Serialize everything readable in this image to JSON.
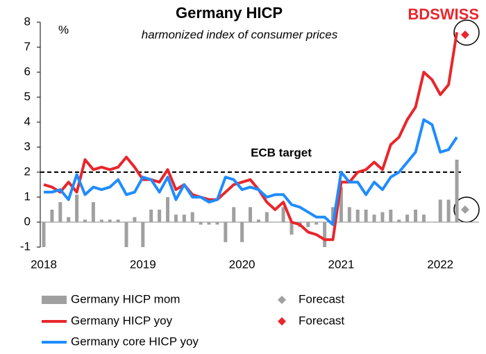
{
  "chart_data": {
    "type": "combo",
    "title": "Germany HICP",
    "subtitle": "harmonized index of consumer prices",
    "y_unit": "%",
    "logo": "BDSWISS",
    "annotation": "ECB target",
    "ecb_target": 2,
    "categories": [
      "2018",
      null,
      null,
      null,
      null,
      null,
      null,
      null,
      null,
      null,
      null,
      null,
      "2019",
      null,
      null,
      null,
      null,
      null,
      null,
      null,
      null,
      null,
      null,
      null,
      "2020",
      null,
      null,
      null,
      null,
      null,
      null,
      null,
      null,
      null,
      null,
      null,
      "2021",
      null,
      null,
      null,
      null,
      null,
      null,
      null,
      null,
      null,
      null,
      null,
      "2022",
      null,
      null,
      null
    ],
    "ylim": [
      -1,
      8
    ],
    "yticks": [
      -1,
      0,
      1,
      2,
      3,
      4,
      5,
      6,
      7,
      8
    ],
    "series": [
      {
        "name": "Germany HICP mom",
        "type": "bar",
        "color": "#a0a0a0",
        "values": [
          -1.0,
          0.5,
          0.8,
          0.2,
          1.1,
          0.1,
          0.8,
          0.1,
          0.1,
          0.1,
          -1.0,
          0.2,
          -1.0,
          0.5,
          0.5,
          1.0,
          0.3,
          0.3,
          0.4,
          -0.1,
          -0.1,
          -0.1,
          -0.8,
          0.6,
          -0.8,
          0.6,
          0.1,
          0.4,
          0.0,
          0.6,
          -0.5,
          -0.2,
          -0.2,
          -0.1,
          -1.0,
          0.6,
          1.4,
          0.6,
          0.5,
          0.5,
          0.3,
          0.4,
          0.5,
          0.1,
          0.3,
          0.5,
          0.3,
          0.0,
          0.9,
          0.9,
          2.5,
          null
        ]
      },
      {
        "name": "Forecast",
        "type": "scatter",
        "color": "#a0a0a0",
        "values": [
          null,
          null,
          null,
          null,
          null,
          null,
          null,
          null,
          null,
          null,
          null,
          null,
          null,
          null,
          null,
          null,
          null,
          null,
          null,
          null,
          null,
          null,
          null,
          null,
          null,
          null,
          null,
          null,
          null,
          null,
          null,
          null,
          null,
          null,
          null,
          null,
          null,
          null,
          null,
          null,
          null,
          null,
          null,
          null,
          null,
          null,
          null,
          null,
          null,
          null,
          null,
          0.5
        ]
      },
      {
        "name": "Germany HICP yoy",
        "type": "line",
        "color": "#e8262b",
        "values": [
          1.5,
          1.4,
          1.2,
          1.6,
          1.2,
          2.5,
          2.1,
          2.2,
          2.1,
          2.2,
          2.6,
          2.2,
          1.7,
          1.7,
          1.6,
          2.1,
          1.3,
          1.5,
          1.1,
          1.0,
          0.9,
          0.9,
          1.2,
          1.5,
          1.6,
          1.7,
          1.3,
          0.8,
          0.5,
          0.8,
          0.0,
          -0.1,
          -0.4,
          -0.5,
          -0.7,
          -0.7,
          1.6,
          1.6,
          2.0,
          2.1,
          2.4,
          2.1,
          3.1,
          3.4,
          4.1,
          4.6,
          6.0,
          5.7,
          5.1,
          5.5,
          7.6,
          null
        ]
      },
      {
        "name": "Forecast",
        "type": "scatter",
        "color": "#e8262b",
        "values": [
          null,
          null,
          null,
          null,
          null,
          null,
          null,
          null,
          null,
          null,
          null,
          null,
          null,
          null,
          null,
          null,
          null,
          null,
          null,
          null,
          null,
          null,
          null,
          null,
          null,
          null,
          null,
          null,
          null,
          null,
          null,
          null,
          null,
          null,
          null,
          null,
          null,
          null,
          null,
          null,
          null,
          null,
          null,
          null,
          null,
          null,
          null,
          null,
          null,
          null,
          null,
          7.5
        ]
      },
      {
        "name": "Germany core HICP yoy",
        "type": "line",
        "color": "#1f8cff",
        "values": [
          1.2,
          1.2,
          1.3,
          0.9,
          1.9,
          1.1,
          1.4,
          1.3,
          1.4,
          1.7,
          1.1,
          1.2,
          1.8,
          1.7,
          1.2,
          1.8,
          0.9,
          1.5,
          1.0,
          1.0,
          0.8,
          0.9,
          1.8,
          1.7,
          1.3,
          1.4,
          1.3,
          1.0,
          1.1,
          1.1,
          0.7,
          0.6,
          0.4,
          0.2,
          0.2,
          -0.1,
          2.0,
          1.6,
          1.6,
          1.1,
          1.6,
          1.3,
          1.8,
          2.0,
          2.4,
          2.8,
          4.1,
          3.9,
          2.8,
          2.9,
          3.4,
          null
        ]
      }
    ]
  }
}
